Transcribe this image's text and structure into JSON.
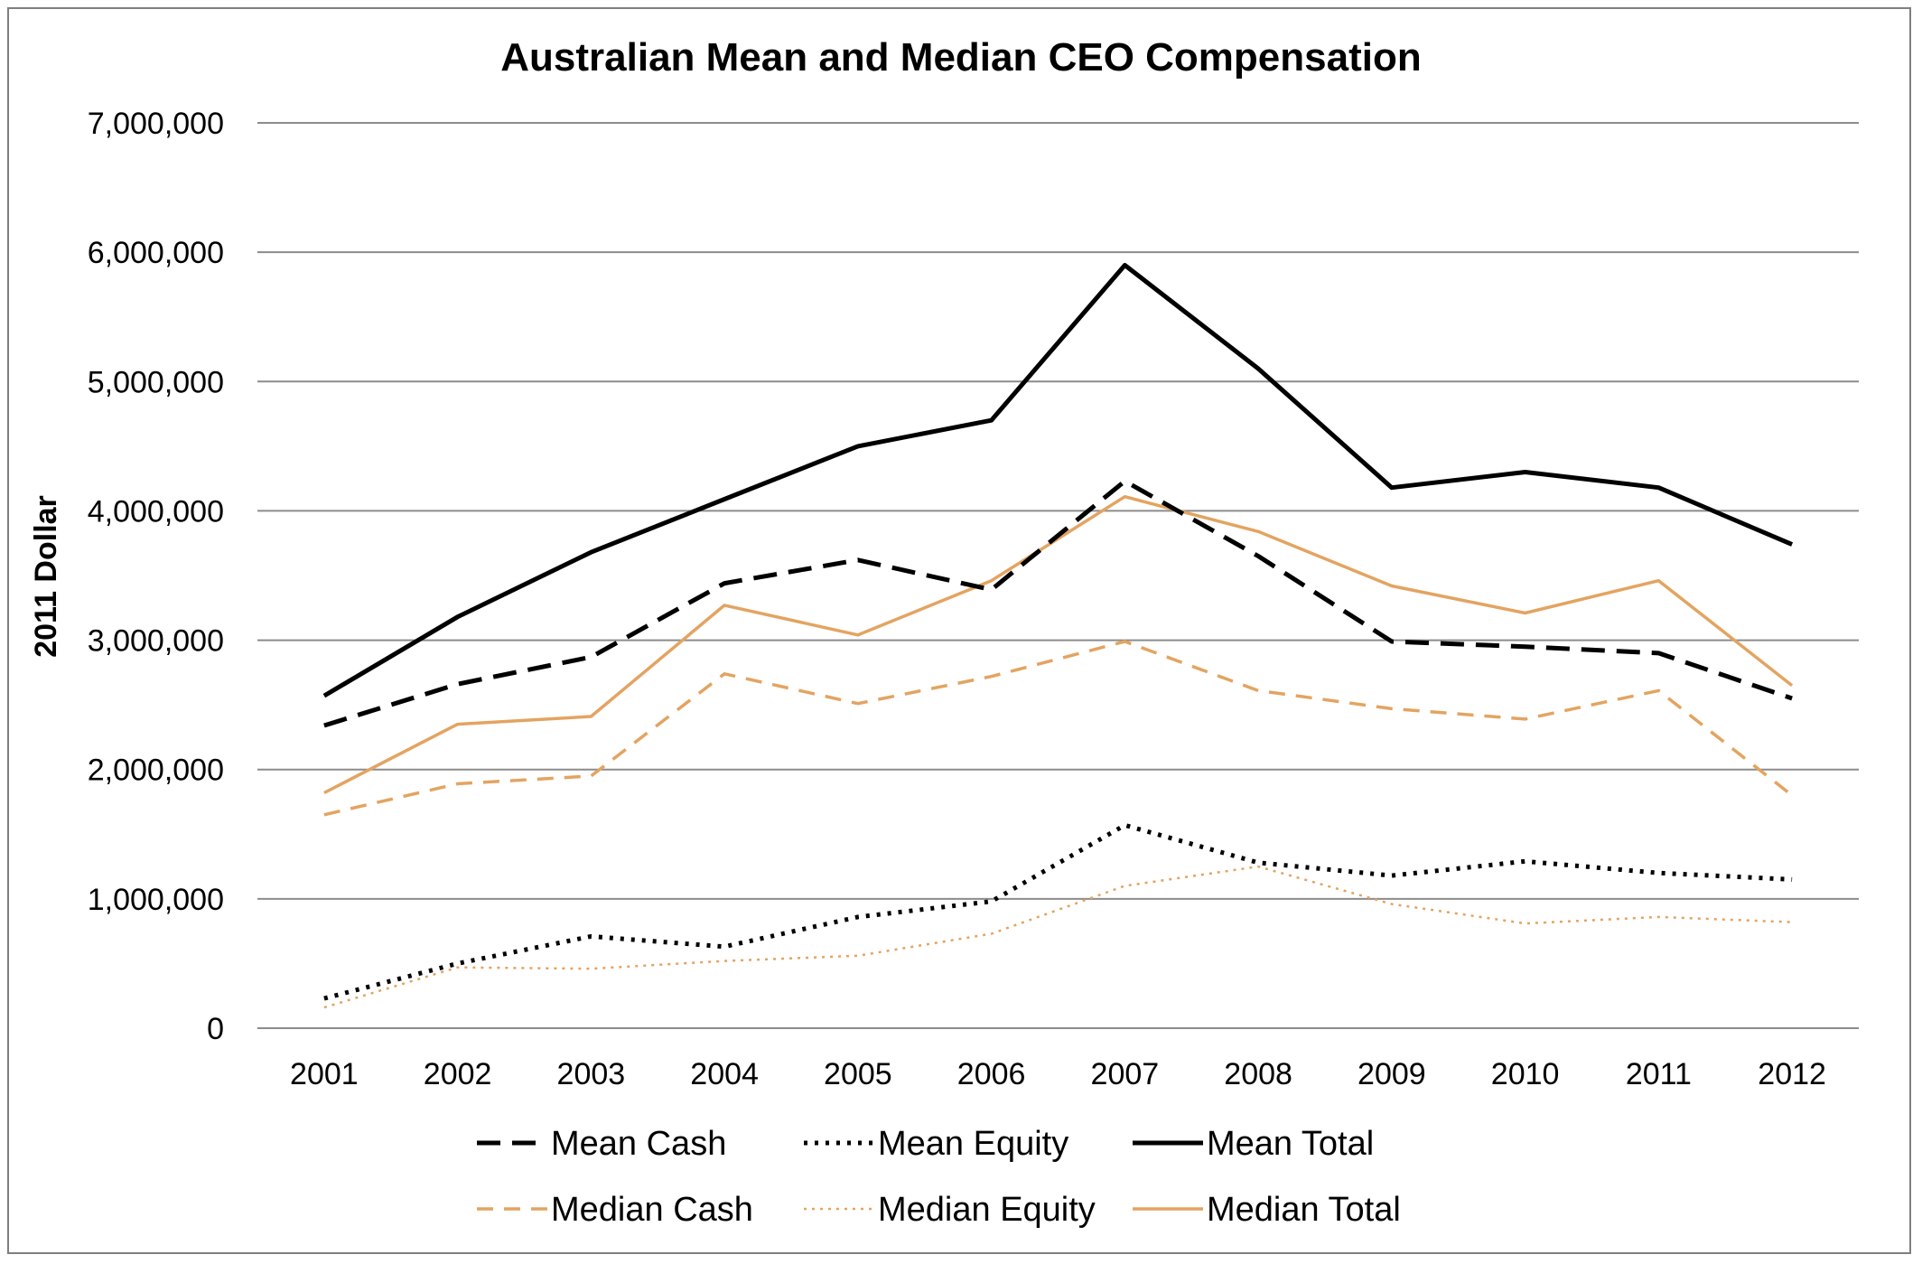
{
  "chart_data": {
    "type": "line",
    "title": "Australian Mean and Median CEO Compensation",
    "xlabel": "",
    "ylabel": "2011 Dollar",
    "ylim": [
      0,
      7000000
    ],
    "yticks": [
      0,
      1000000,
      2000000,
      3000000,
      4000000,
      5000000,
      6000000,
      7000000
    ],
    "ytick_labels": [
      "0",
      "1,000,000",
      "2,000,000",
      "3,000,000",
      "4,000,000",
      "5,000,000",
      "6,000,000",
      "7,000,000"
    ],
    "categories": [
      "2001",
      "2002",
      "2003",
      "2004",
      "2005",
      "2006",
      "2007",
      "2008",
      "2009",
      "2010",
      "2011",
      "2012"
    ],
    "grid": "horizontal",
    "legend_position": "bottom",
    "series": [
      {
        "name": "Mean Cash",
        "color": "#000000",
        "style": "dashed",
        "width": "thick",
        "values": [
          2340000,
          2660000,
          2870000,
          3440000,
          3620000,
          3390000,
          4230000,
          3650000,
          2990000,
          2950000,
          2900000,
          2550000
        ]
      },
      {
        "name": "Mean Equity",
        "color": "#000000",
        "style": "dotted",
        "width": "thick",
        "values": [
          230000,
          500000,
          710000,
          630000,
          860000,
          980000,
          1570000,
          1280000,
          1180000,
          1290000,
          1200000,
          1150000
        ]
      },
      {
        "name": "Mean Total",
        "color": "#000000",
        "style": "solid",
        "width": "thick",
        "values": [
          2570000,
          3180000,
          3680000,
          4090000,
          4500000,
          4700000,
          5900000,
          5100000,
          4180000,
          4300000,
          4180000,
          3740000
        ]
      },
      {
        "name": "Median Cash",
        "color": "#e3a461",
        "style": "dashed",
        "width": "medium",
        "values": [
          1650000,
          1890000,
          1950000,
          2740000,
          2510000,
          2720000,
          2990000,
          2610000,
          2470000,
          2390000,
          2610000,
          1800000
        ]
      },
      {
        "name": "Median Equity",
        "color": "#e3a461",
        "style": "dotted",
        "width": "thin",
        "values": [
          160000,
          470000,
          460000,
          520000,
          560000,
          730000,
          1100000,
          1250000,
          960000,
          810000,
          860000,
          820000
        ]
      },
      {
        "name": "Median Total",
        "color": "#e3a461",
        "style": "solid",
        "width": "medium",
        "values": [
          1820000,
          2350000,
          2410000,
          3270000,
          3040000,
          3460000,
          4110000,
          3840000,
          3420000,
          3210000,
          3460000,
          2650000
        ]
      }
    ]
  }
}
